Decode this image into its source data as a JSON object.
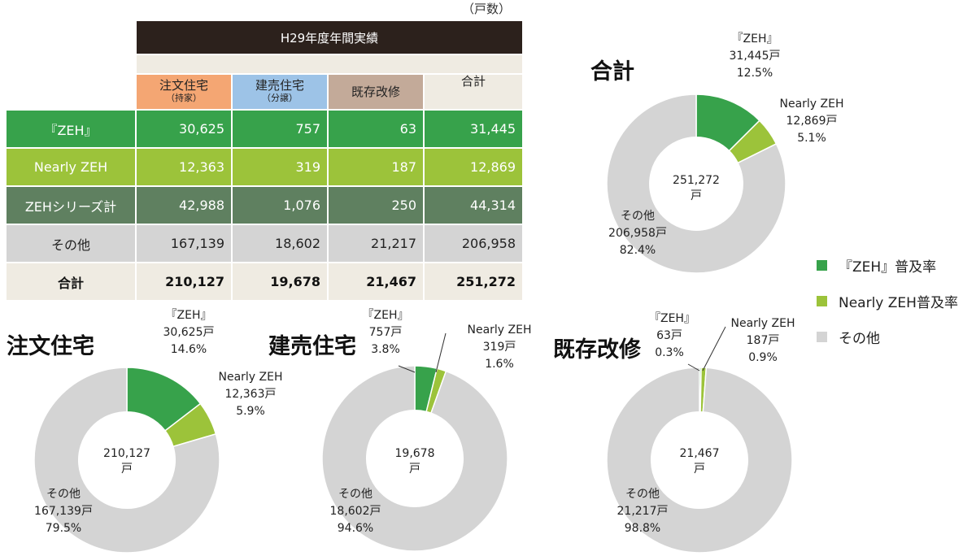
{
  "unit_label": "（戸数）",
  "table": {
    "title": "H29年度年間実績",
    "columns": [
      {
        "label": "注文住宅",
        "sub": "（持家）"
      },
      {
        "label": "建売住宅",
        "sub": "（分譲）"
      },
      {
        "label": "既存改修",
        "sub": ""
      },
      {
        "label": "合計",
        "sub": ""
      }
    ],
    "rows": [
      {
        "label": "『ZEH』",
        "values": [
          "30,625",
          "757",
          "63",
          "31,445"
        ]
      },
      {
        "label": "Nearly ZEH",
        "values": [
          "12,363",
          "319",
          "187",
          "12,869"
        ]
      },
      {
        "label": "ZEHシリーズ計",
        "values": [
          "42,988",
          "1,076",
          "250",
          "44,314"
        ]
      },
      {
        "label": "その他",
        "values": [
          "167,139",
          "18,602",
          "21,217",
          "206,958"
        ]
      },
      {
        "label": "合計",
        "values": [
          "210,127",
          "19,678",
          "21,467",
          "251,272"
        ]
      }
    ]
  },
  "colors": {
    "zeh": "#37a24b",
    "nearly": "#9cc33a",
    "other": "#d4d4d4"
  },
  "legend": [
    {
      "label": "『ZEH』普及率",
      "color": "#37a24b"
    },
    {
      "label": "Nearly ZEH普及率",
      "color": "#9cc33a"
    },
    {
      "label": "その他",
      "color": "#d4d4d4"
    }
  ],
  "chart_data": [
    {
      "type": "pie",
      "title": "合計",
      "center_value": "251,272",
      "center_unit": "戸",
      "slices": [
        {
          "name": "『ZEH』",
          "value": 31445,
          "value_label": "31,445戸",
          "pct": "12.5%"
        },
        {
          "name": "Nearly ZEH",
          "value": 12869,
          "value_label": "12,869戸",
          "pct": "5.1%"
        },
        {
          "name": "その他",
          "value": 206958,
          "value_label": "206,958戸",
          "pct": "82.4%"
        }
      ]
    },
    {
      "type": "pie",
      "title": "注文住宅",
      "center_value": "210,127",
      "center_unit": "戸",
      "slices": [
        {
          "name": "『ZEH』",
          "value": 30625,
          "value_label": "30,625戸",
          "pct": "14.6%"
        },
        {
          "name": "Nearly ZEH",
          "value": 12363,
          "value_label": "12,363戸",
          "pct": "5.9%"
        },
        {
          "name": "その他",
          "value": 167139,
          "value_label": "167,139戸",
          "pct": "79.5%"
        }
      ]
    },
    {
      "type": "pie",
      "title": "建売住宅",
      "center_value": "19,678",
      "center_unit": "戸",
      "slices": [
        {
          "name": "『ZEH』",
          "value": 757,
          "value_label": "757戸",
          "pct": "3.8%"
        },
        {
          "name": "Nearly ZEH",
          "value": 319,
          "value_label": "319戸",
          "pct": "1.6%"
        },
        {
          "name": "その他",
          "value": 18602,
          "value_label": "18,602戸",
          "pct": "94.6%"
        }
      ]
    },
    {
      "type": "pie",
      "title": "既存改修",
      "center_value": "21,467",
      "center_unit": "戸",
      "slices": [
        {
          "name": "『ZEH』",
          "value": 63,
          "value_label": "63戸",
          "pct": "0.3%"
        },
        {
          "name": "Nearly ZEH",
          "value": 187,
          "value_label": "187戸",
          "pct": "0.9%"
        },
        {
          "name": "その他",
          "value": 21217,
          "value_label": "21,217戸",
          "pct": "98.8%"
        }
      ]
    }
  ]
}
